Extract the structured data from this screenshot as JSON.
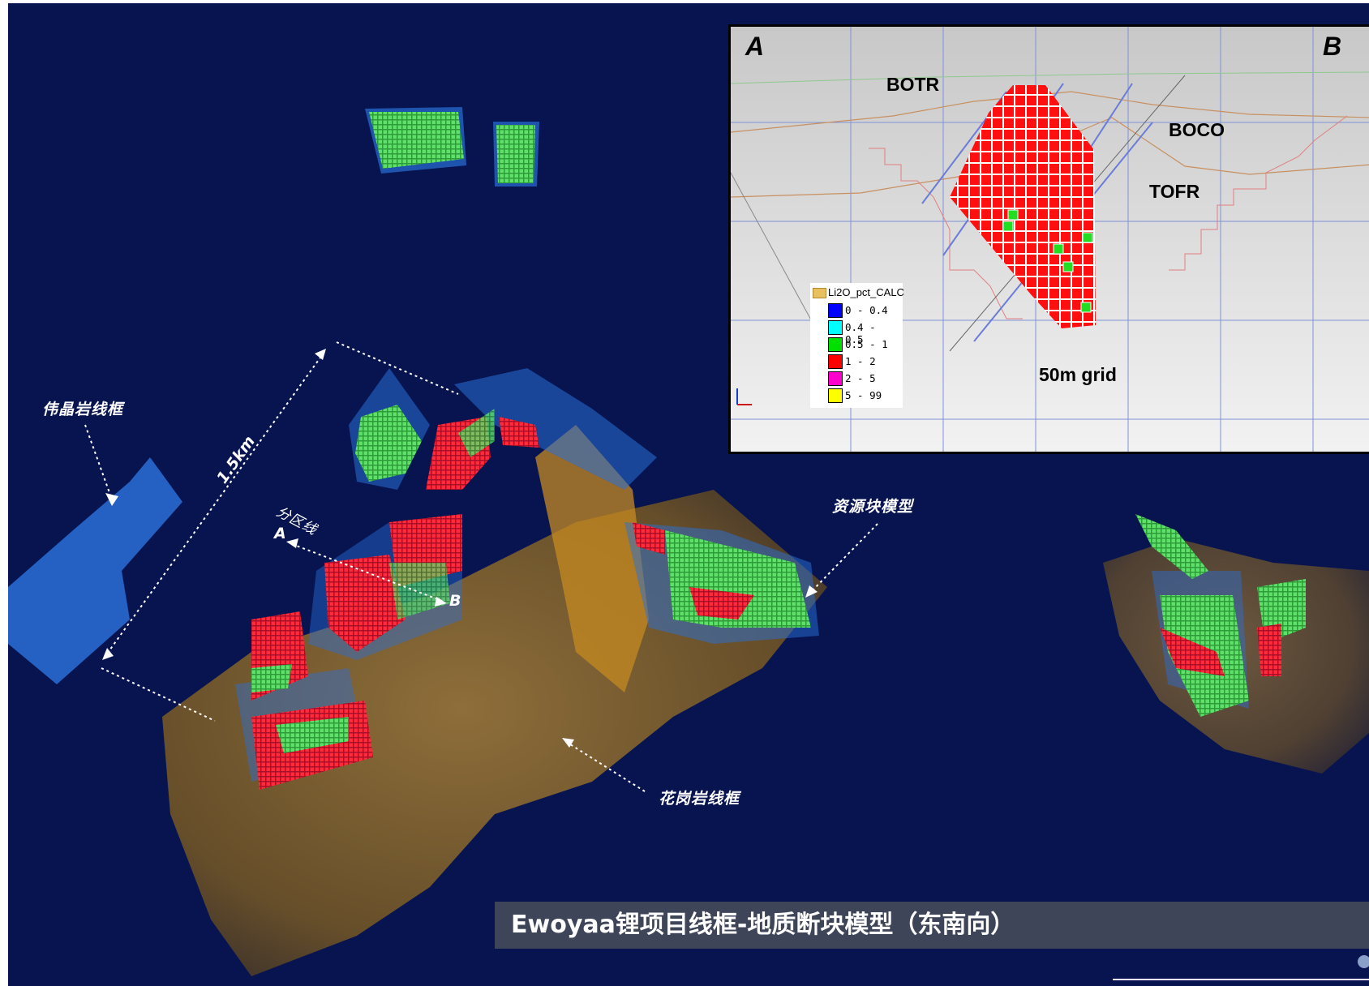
{
  "labels": {
    "pegmatite_wireframe": "伟晶岩线框",
    "section_line": "分区线",
    "point_a": "A",
    "point_b": "B",
    "distance": "1.5km",
    "resource_block_model": "资源块模型",
    "granite_wireframe": "花岗岩线框"
  },
  "inset": {
    "corner_left": "A",
    "corner_right": "B",
    "zones": [
      "BOTR",
      "BOCO",
      "TOFR"
    ],
    "grid_label": "50m grid",
    "legend": {
      "title": "Li2O_pct_CALC",
      "items": [
        {
          "range": "0 - 0.4",
          "color": "#0000ff"
        },
        {
          "range": "0.4 - 0.5",
          "color": "#00ffff"
        },
        {
          "range": "0.5 - 1",
          "color": "#00e000"
        },
        {
          "range": "1 - 2",
          "color": "#ff0000"
        },
        {
          "range": "2 - 5",
          "color": "#ff00cc"
        },
        {
          "range": "5 - 99",
          "color": "#ffff00"
        }
      ]
    }
  },
  "caption": "Ewoyaa锂项目线框-地质断块模型（东南向）",
  "colors": {
    "background": "#071450",
    "granite": "#8a6a2e",
    "pegmatite": "#2a6fd6",
    "high_grade": "#ff1a1a",
    "medium_grade": "#38d84a"
  }
}
